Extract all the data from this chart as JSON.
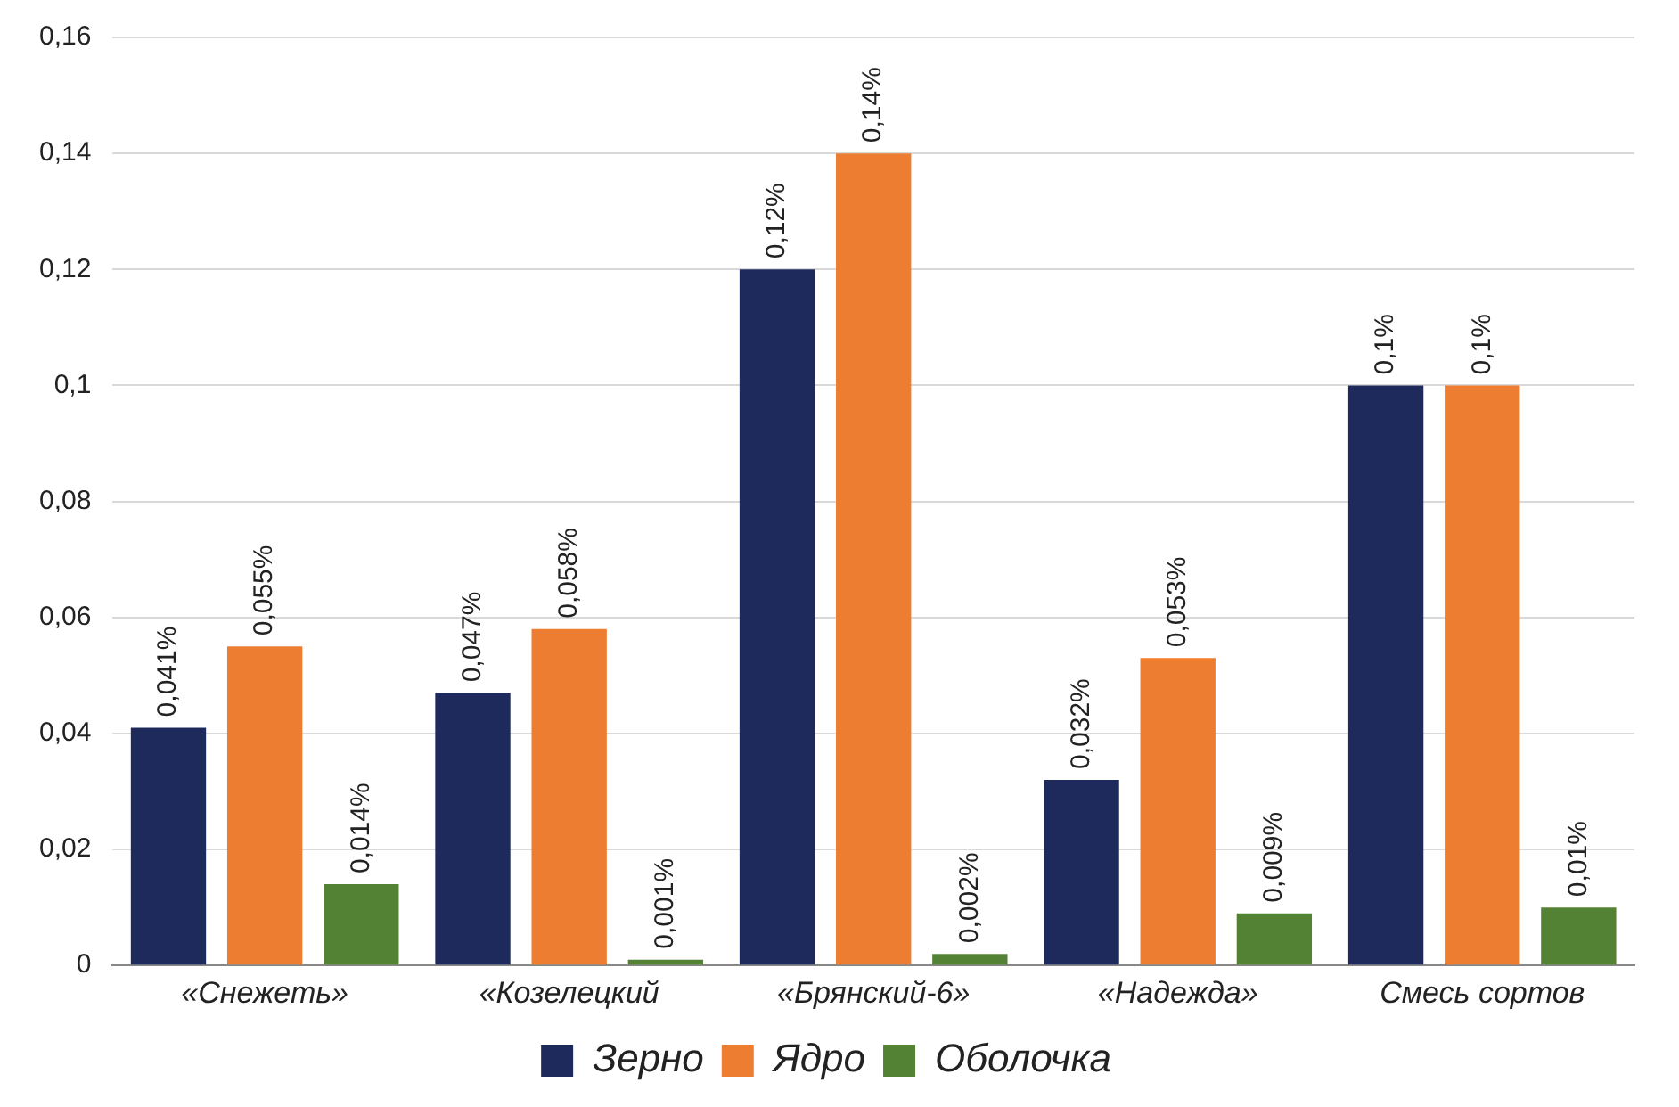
{
  "chart_data": {
    "type": "bar",
    "categories": [
      "«Снежеть»",
      "«Козелецкий",
      "«Брянский-6»",
      "«Надежда»",
      "Смесь сортов"
    ],
    "series": [
      {
        "name": "Зерно",
        "color": "#1f2a5c",
        "values": [
          0.041,
          0.047,
          0.12,
          0.032,
          0.1
        ],
        "value_labels": [
          "0,041%",
          "0,047%",
          "0,12%",
          "0,032%",
          "0,1%"
        ]
      },
      {
        "name": "Ядро",
        "color": "#ed7d31",
        "values": [
          0.055,
          0.058,
          0.14,
          0.053,
          0.1
        ],
        "value_labels": [
          "0,055%",
          "0,058%",
          "0,14%",
          "0,053%",
          "0,1%"
        ]
      },
      {
        "name": "Оболочка",
        "color": "#548235",
        "values": [
          0.014,
          0.001,
          0.002,
          0.009,
          0.01
        ],
        "value_labels": [
          "0,014%",
          "0,001%",
          "0,002%",
          "0,009%",
          "0,01%"
        ]
      }
    ],
    "ylim": [
      0,
      0.16
    ],
    "yticks": [
      {
        "value": 0,
        "label": "0"
      },
      {
        "value": 0.02,
        "label": "0,02"
      },
      {
        "value": 0.04,
        "label": "0,04"
      },
      {
        "value": 0.06,
        "label": "0,06"
      },
      {
        "value": 0.08,
        "label": "0,08"
      },
      {
        "value": 0.1,
        "label": "0,1"
      },
      {
        "value": 0.12,
        "label": "0,12"
      },
      {
        "value": 0.14,
        "label": "0,14"
      },
      {
        "value": 0.16,
        "label": "0,16"
      }
    ],
    "grid": "y",
    "legend": "bottom"
  }
}
